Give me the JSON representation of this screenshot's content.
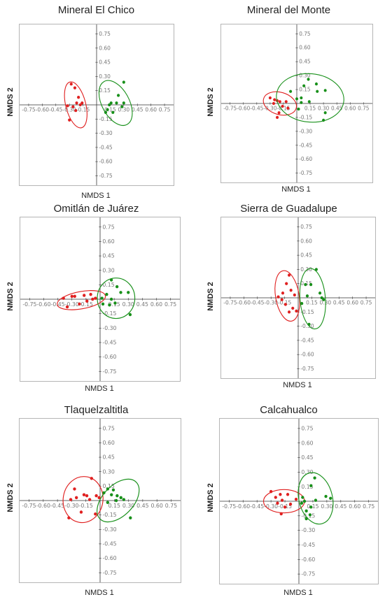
{
  "chart_data": [
    {
      "type": "scatter",
      "title": "Mineral El Chico",
      "xlabel": "NMDS 1",
      "ylabel": "NMDS 2",
      "xlim": [
        -0.85,
        0.85
      ],
      "ylim": [
        -0.85,
        0.85
      ],
      "ticks": [
        "-0.75",
        "-0.60",
        "-0.45",
        "-0.30",
        "-0.15",
        "0.15",
        "0.30",
        "0.45",
        "0.60",
        "0.75"
      ],
      "series": [
        {
          "color": "#e02020",
          "points": [
            [
              -0.28,
              0.22
            ],
            [
              -0.24,
              0.18
            ],
            [
              -0.2,
              0.08
            ],
            [
              -0.22,
              0.02
            ],
            [
              -0.26,
              -0.02
            ],
            [
              -0.23,
              -0.06
            ],
            [
              -0.32,
              -0.01
            ],
            [
              -0.3,
              -0.16
            ],
            [
              -0.18,
              0.0
            ],
            [
              -0.16,
              0.02
            ]
          ],
          "ellipse": {
            "cx": -0.23,
            "cy": 0.0,
            "rx": 0.11,
            "ry": 0.25,
            "rot": 15
          }
        },
        {
          "color": "#18901a",
          "points": [
            [
              0.3,
              0.24
            ],
            [
              0.24,
              0.1
            ],
            [
              0.22,
              0.02
            ],
            [
              0.28,
              -0.02
            ],
            [
              0.14,
              0.0
            ],
            [
              0.12,
              -0.05
            ],
            [
              0.18,
              -0.08
            ],
            [
              0.1,
              -0.08
            ],
            [
              0.3,
              0.02
            ],
            [
              0.16,
              0.02
            ]
          ],
          "ellipse": {
            "cx": 0.21,
            "cy": 0.02,
            "rx": 0.15,
            "ry": 0.26,
            "rot": 30
          }
        }
      ]
    },
    {
      "type": "scatter",
      "title": "Mineral del Monte",
      "xlabel": "NMDS 1",
      "ylabel": "NMDS 2",
      "xlim": [
        -0.85,
        0.85
      ],
      "ylim": [
        -0.85,
        0.85
      ],
      "ticks": [
        "-0.75",
        "-0.60",
        "-0.45",
        "-0.30",
        "-0.15",
        "0.15",
        "0.30",
        "0.45",
        "0.60",
        "0.75"
      ],
      "series": [
        {
          "color": "#e02020",
          "points": [
            [
              -0.3,
              0.06
            ],
            [
              -0.25,
              0.04
            ],
            [
              -0.22,
              0.03
            ],
            [
              -0.19,
              0.02
            ],
            [
              -0.16,
              -0.03
            ],
            [
              -0.2,
              -0.1
            ],
            [
              -0.22,
              -0.15
            ],
            [
              -0.26,
              0.0
            ],
            [
              -0.1,
              -0.05
            ],
            [
              -0.12,
              0.02
            ]
          ],
          "ellipse": {
            "cx": -0.19,
            "cy": 0.0,
            "rx": 0.19,
            "ry": 0.12,
            "rot": -15
          }
        },
        {
          "color": "#18901a",
          "points": [
            [
              0.13,
              0.26
            ],
            [
              0.22,
              0.21
            ],
            [
              0.08,
              0.19
            ],
            [
              0.23,
              0.13
            ],
            [
              0.32,
              0.14
            ],
            [
              0.05,
              0.06
            ],
            [
              0.0,
              0.05
            ],
            [
              0.14,
              0.02
            ],
            [
              0.02,
              -0.06
            ],
            [
              0.32,
              -0.1
            ],
            [
              0.3,
              -0.18
            ],
            [
              -0.07,
              0.13
            ],
            [
              0.05,
              0.01
            ]
          ],
          "ellipse": {
            "cx": 0.15,
            "cy": 0.06,
            "rx": 0.38,
            "ry": 0.26,
            "rot": -5
          }
        }
      ]
    },
    {
      "type": "scatter",
      "title": "Omitlán de Juárez",
      "xlabel": "NMDS 1",
      "ylabel": "NMDS 2",
      "xlim": [
        -0.85,
        0.85
      ],
      "ylim": [
        -0.85,
        0.85
      ],
      "ticks": [
        "-0.75",
        "-0.60",
        "-0.45",
        "-0.30",
        "-0.15",
        "0.15",
        "0.30",
        "0.45",
        "0.60",
        "0.75"
      ],
      "series": [
        {
          "color": "#e02020",
          "points": [
            [
              -0.39,
              0.01
            ],
            [
              -0.3,
              0.03
            ],
            [
              -0.27,
              0.03
            ],
            [
              -0.17,
              0.04
            ],
            [
              -0.1,
              0.05
            ],
            [
              -0.08,
              0.0
            ],
            [
              -0.05,
              0.01
            ],
            [
              -0.14,
              -0.02
            ],
            [
              -0.35,
              -0.08
            ],
            [
              -0.22,
              -0.05
            ]
          ],
          "ellipse": {
            "cx": -0.2,
            "cy": -0.01,
            "rx": 0.26,
            "ry": 0.09,
            "rot": 10
          }
        },
        {
          "color": "#18901a",
          "points": [
            [
              0.12,
              0.2
            ],
            [
              0.18,
              0.13
            ],
            [
              0.22,
              0.07
            ],
            [
              0.07,
              0.05
            ],
            [
              0.3,
              0.07
            ],
            [
              0.12,
              0.0
            ],
            [
              0.02,
              0.01
            ],
            [
              0.16,
              -0.04
            ],
            [
              0.1,
              -0.06
            ],
            [
              0.03,
              -0.05
            ],
            [
              0.32,
              -0.16
            ]
          ],
          "ellipse": {
            "cx": 0.17,
            "cy": 0.01,
            "rx": 0.2,
            "ry": 0.21,
            "rot": 0
          }
        }
      ]
    },
    {
      "type": "scatter",
      "title": "Sierra de Guadalupe",
      "xlabel": "NMDS 1",
      "ylabel": "NMDS 2",
      "xlim": [
        -0.85,
        0.85
      ],
      "ylim": [
        -0.85,
        0.85
      ],
      "ticks": [
        "-0.75",
        "-0.60",
        "-0.45",
        "-0.30",
        "-0.15",
        "0.15",
        "0.30",
        "0.45",
        "0.60",
        "0.75"
      ],
      "series": [
        {
          "color": "#e02020",
          "points": [
            [
              -0.1,
              0.24
            ],
            [
              -0.13,
              0.15
            ],
            [
              -0.08,
              0.08
            ],
            [
              -0.17,
              0.05
            ],
            [
              -0.22,
              0.01
            ],
            [
              -0.18,
              -0.02
            ],
            [
              -0.14,
              -0.07
            ],
            [
              -0.1,
              -0.15
            ],
            [
              -0.06,
              -0.11
            ],
            [
              -0.02,
              -0.14
            ],
            [
              -0.04,
              0.03
            ]
          ],
          "ellipse": {
            "cx": -0.12,
            "cy": 0.02,
            "rx": 0.13,
            "ry": 0.27,
            "rot": 10
          }
        },
        {
          "color": "#18901a",
          "points": [
            [
              0.2,
              0.3
            ],
            [
              0.14,
              0.14
            ],
            [
              0.08,
              0.14
            ],
            [
              0.24,
              0.05
            ],
            [
              0.26,
              0.0
            ],
            [
              0.28,
              -0.02
            ],
            [
              0.04,
              -0.06
            ],
            [
              0.12,
              -0.28
            ],
            [
              0.1,
              0.02
            ]
          ],
          "ellipse": {
            "cx": 0.16,
            "cy": -0.01,
            "rx": 0.14,
            "ry": 0.32,
            "rot": 5
          }
        }
      ]
    },
    {
      "type": "scatter",
      "title": "Tlaquelzaltitla",
      "xlabel": "NMDS 1",
      "ylabel": "NMDS 2",
      "xlim": [
        -0.85,
        0.85
      ],
      "ylim": [
        -0.85,
        0.85
      ],
      "ticks": [
        "-0.75",
        "-0.60",
        "-0.45",
        "-0.30",
        "-0.15",
        "0.15",
        "0.30",
        "0.45",
        "0.60",
        "0.75"
      ],
      "series": [
        {
          "color": "#e02020",
          "points": [
            [
              -0.09,
              0.23
            ],
            [
              -0.27,
              0.12
            ],
            [
              -0.17,
              0.06
            ],
            [
              -0.25,
              0.03
            ],
            [
              -0.11,
              0.01
            ],
            [
              -0.04,
              0.05
            ],
            [
              -0.01,
              0.03
            ],
            [
              -0.2,
              -0.12
            ],
            [
              -0.33,
              -0.18
            ],
            [
              -0.05,
              -0.14
            ],
            [
              -0.31,
              0.01
            ],
            [
              -0.14,
              0.05
            ]
          ],
          "ellipse": {
            "cx": -0.18,
            "cy": 0.01,
            "rx": 0.21,
            "ry": 0.24,
            "rot": -10
          }
        },
        {
          "color": "#18901a",
          "points": [
            [
              0.08,
              0.12
            ],
            [
              0.14,
              0.11
            ],
            [
              0.12,
              0.06
            ],
            [
              0.18,
              0.05
            ],
            [
              0.22,
              0.03
            ],
            [
              0.25,
              0.01
            ],
            [
              0.17,
              0.0
            ],
            [
              0.08,
              -0.02
            ],
            [
              0.32,
              -0.18
            ],
            [
              0.04,
              0.08
            ]
          ],
          "ellipse": {
            "cx": 0.19,
            "cy": 0.0,
            "rx": 0.16,
            "ry": 0.27,
            "rot": -45
          }
        }
      ]
    },
    {
      "type": "scatter",
      "title": "Calcahualco",
      "xlabel": "NMDS 1",
      "ylabel": "NMDS 2",
      "xlim": [
        -0.85,
        0.85
      ],
      "ylim": [
        -0.85,
        0.85
      ],
      "ticks": [
        "-0.75",
        "-0.60",
        "-0.45",
        "-0.30",
        "-0.15",
        "0.15",
        "0.30",
        "0.45",
        "0.60",
        "0.75"
      ],
      "series": [
        {
          "color": "#e02020",
          "points": [
            [
              -0.3,
              0.1
            ],
            [
              -0.25,
              0.04
            ],
            [
              -0.2,
              0.07
            ],
            [
              -0.12,
              0.07
            ],
            [
              -0.18,
              0.01
            ],
            [
              -0.23,
              -0.02
            ],
            [
              -0.15,
              -0.06
            ],
            [
              -0.09,
              -0.03
            ],
            [
              -0.03,
              0.02
            ],
            [
              -0.19,
              -0.13
            ]
          ],
          "ellipse": {
            "cx": -0.16,
            "cy": 0.0,
            "rx": 0.22,
            "ry": 0.12,
            "rot": 0
          }
        },
        {
          "color": "#18901a",
          "points": [
            [
              0.17,
              0.24
            ],
            [
              0.13,
              0.16
            ],
            [
              0.29,
              0.05
            ],
            [
              0.34,
              0.03
            ],
            [
              0.18,
              0.01
            ],
            [
              0.06,
              0.0
            ],
            [
              0.03,
              -0.02
            ],
            [
              0.13,
              -0.06
            ],
            [
              0.08,
              -0.1
            ],
            [
              0.12,
              -0.14
            ],
            [
              0.08,
              -0.18
            ],
            [
              0.04,
              0.04
            ]
          ],
          "ellipse": {
            "cx": 0.18,
            "cy": 0.03,
            "rx": 0.18,
            "ry": 0.27,
            "rot": 15
          }
        }
      ]
    }
  ]
}
